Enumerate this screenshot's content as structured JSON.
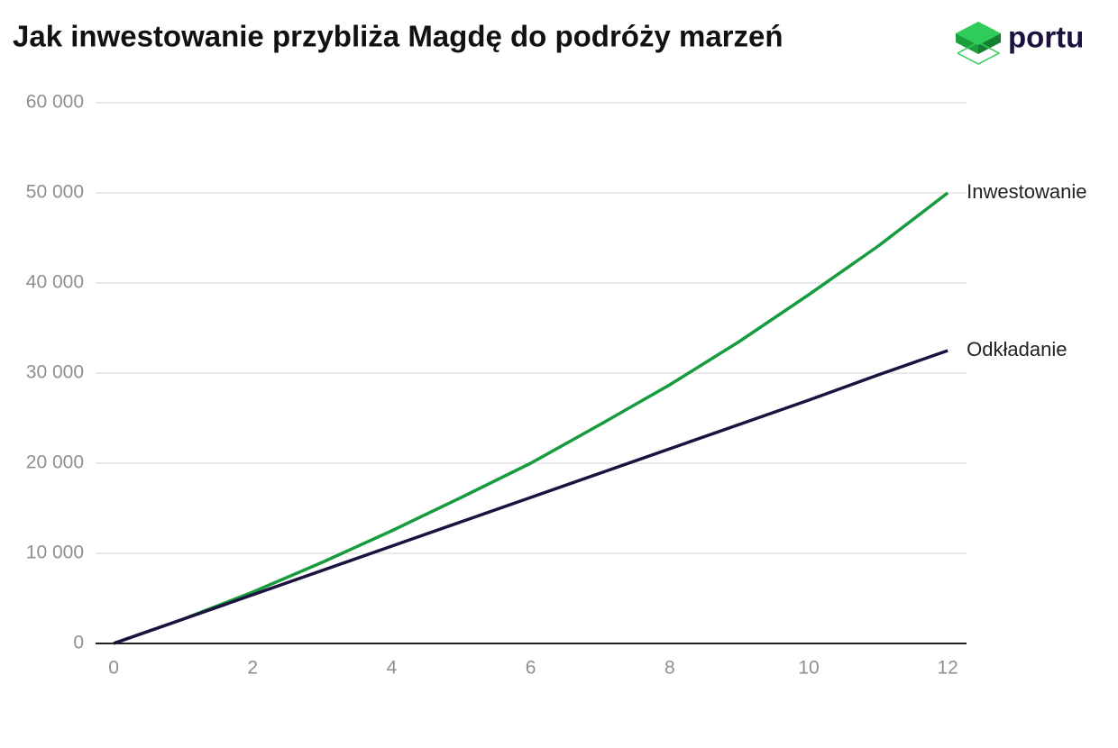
{
  "chart_data": {
    "type": "line",
    "title": "Jak inwestowanie przybliża Magdę do podróży marzeń",
    "logo": "portu",
    "x": [
      0,
      1,
      2,
      3,
      4,
      5,
      6,
      7,
      8,
      9,
      10,
      11,
      12
    ],
    "series": [
      {
        "name": "Inwestowanie",
        "color": "#169b3e",
        "values": [
          0,
          2700,
          5700,
          9000,
          12500,
          16200,
          20000,
          24300,
          28700,
          33500,
          38700,
          44100,
          50000
        ]
      },
      {
        "name": "Odkładanie",
        "color": "#1d1140",
        "values": [
          0,
          2700,
          5400,
          8100,
          10800,
          13500,
          16200,
          18900,
          21600,
          24300,
          27000,
          29800,
          32500
        ]
      }
    ],
    "xlim": [
      -0.26,
      12.27
    ],
    "xticks": [
      0,
      2,
      4,
      6,
      8,
      10,
      12
    ],
    "ylim": [
      0,
      60000
    ],
    "yticks": [
      0,
      {
        "value": 10000,
        "label": "10 000"
      },
      {
        "value": 20000,
        "label": "20 000"
      },
      {
        "value": 30000,
        "label": "30 000"
      },
      {
        "value": 40000,
        "label": "40 000"
      },
      {
        "value": 50000,
        "label": "50 000"
      },
      {
        "value": 60000,
        "label": "60 000"
      }
    ],
    "grid": true
  }
}
